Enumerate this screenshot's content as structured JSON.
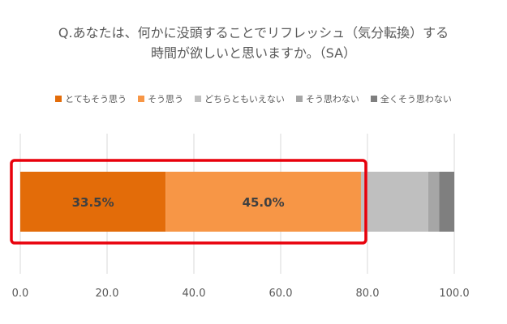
{
  "chart_data": {
    "type": "bar",
    "orientation": "horizontal-stacked",
    "title_lines": [
      "Q.あなたは、何かに没頭することでリフレッシュ（気分転換）する",
      "時間が欲しいと思いますか。（SA）"
    ],
    "xlim": [
      0,
      100
    ],
    "x_ticks": [
      "0.0",
      "20.0",
      "40.0",
      "60.0",
      "80.0",
      "100.0"
    ],
    "grid": true,
    "legend_position": "top",
    "series": [
      {
        "name": "とてもそう思う",
        "value": 33.5,
        "label": "33.5%",
        "color": "#E36C09"
      },
      {
        "name": "そう思う",
        "value": 45.0,
        "label": "45.0%",
        "color": "#F79646"
      },
      {
        "name": "どちらともいえない",
        "value": 15.5,
        "label": "",
        "color": "#BFBFBF"
      },
      {
        "name": "そう思わない",
        "value": 2.5,
        "label": "",
        "color": "#A6A6A6"
      },
      {
        "name": "全くそう思わない",
        "value": 3.5,
        "label": "",
        "color": "#7F7F7F"
      }
    ],
    "highlight": {
      "from": 0,
      "to": 78.5,
      "color": "#E8000B"
    }
  }
}
